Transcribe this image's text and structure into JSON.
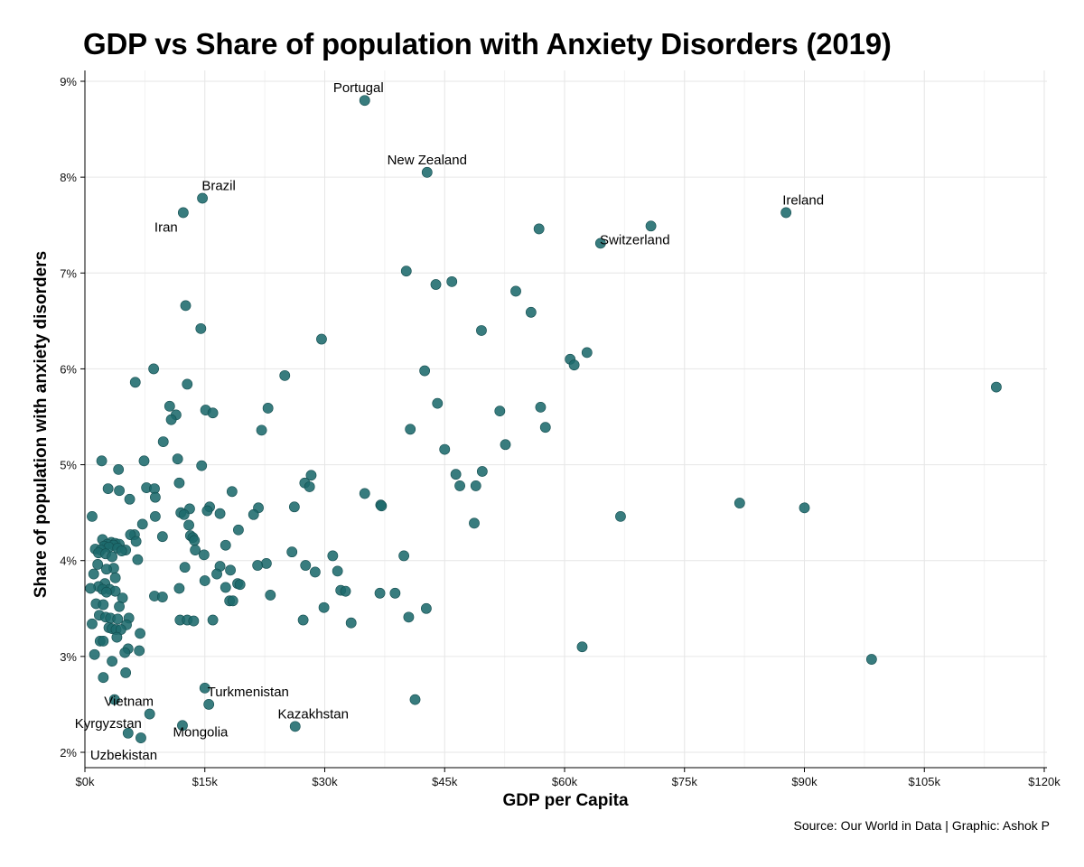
{
  "chart_data": {
    "type": "scatter",
    "title": "GDP vs Share of population with Anxiety Disorders (2019)",
    "xlabel": "GDP per Capita",
    "ylabel": "Share of population with anxiety disorders",
    "source": "Source: Our World in Data | Graphic: Ashok P",
    "xlim": [
      0,
      120000
    ],
    "ylim": [
      2,
      9
    ],
    "grid": true,
    "x_ticks": [
      {
        "value": 0,
        "label": "$0k"
      },
      {
        "value": 15000,
        "label": "$15k"
      },
      {
        "value": 30000,
        "label": "$30k"
      },
      {
        "value": 45000,
        "label": "$45k"
      },
      {
        "value": 60000,
        "label": "$60k"
      },
      {
        "value": 75000,
        "label": "$75k"
      },
      {
        "value": 90000,
        "label": "$90k"
      },
      {
        "value": 105000,
        "label": "$105k"
      },
      {
        "value": 120000,
        "label": "$120k"
      }
    ],
    "y_ticks": [
      {
        "value": 2,
        "label": "2%"
      },
      {
        "value": 3,
        "label": "3%"
      },
      {
        "value": 4,
        "label": "4%"
      },
      {
        "value": 5,
        "label": "5%"
      },
      {
        "value": 6,
        "label": "6%"
      },
      {
        "value": 7,
        "label": "7%"
      },
      {
        "value": 8,
        "label": "8%"
      },
      {
        "value": 9,
        "label": "9%"
      }
    ],
    "color": "#1c6a6c",
    "labeled_points": [
      {
        "label": "Portugal",
        "x": 35000,
        "y": 8.8
      },
      {
        "label": "New Zealand",
        "x": 42800,
        "y": 8.05
      },
      {
        "label": "Brazil",
        "x": 14700,
        "y": 7.78
      },
      {
        "label": "Iran",
        "x": 12300,
        "y": 7.63
      },
      {
        "label": "Ireland",
        "x": 87700,
        "y": 7.63
      },
      {
        "label": "Switzerland",
        "x": 64500,
        "y": 7.31
      },
      {
        "label": "Turkmenistan",
        "x": 15000,
        "y": 2.67
      },
      {
        "label": "Vietnam",
        "x": 8100,
        "y": 2.4
      },
      {
        "label": "Kyrgyzstan",
        "x": 5400,
        "y": 2.2
      },
      {
        "label": "Kazakhstan",
        "x": 26300,
        "y": 2.27
      },
      {
        "label": "Mongolia",
        "x": 12200,
        "y": 2.28
      },
      {
        "label": "Uzbekistan",
        "x": 7000,
        "y": 2.15
      }
    ],
    "points": [
      {
        "x": 70800,
        "y": 7.49
      },
      {
        "x": 56800,
        "y": 7.46
      },
      {
        "x": 40200,
        "y": 7.02
      },
      {
        "x": 45900,
        "y": 6.91
      },
      {
        "x": 43900,
        "y": 6.88
      },
      {
        "x": 53900,
        "y": 6.81
      },
      {
        "x": 12600,
        "y": 6.66
      },
      {
        "x": 55800,
        "y": 6.59
      },
      {
        "x": 14500,
        "y": 6.42
      },
      {
        "x": 49600,
        "y": 6.4
      },
      {
        "x": 29600,
        "y": 6.31
      },
      {
        "x": 62800,
        "y": 6.17
      },
      {
        "x": 60700,
        "y": 6.1
      },
      {
        "x": 61200,
        "y": 6.04
      },
      {
        "x": 8600,
        "y": 6.0
      },
      {
        "x": 42500,
        "y": 5.98
      },
      {
        "x": 25000,
        "y": 5.93
      },
      {
        "x": 6300,
        "y": 5.86
      },
      {
        "x": 12800,
        "y": 5.84
      },
      {
        "x": 114000,
        "y": 5.81
      },
      {
        "x": 44100,
        "y": 5.64
      },
      {
        "x": 10600,
        "y": 5.61
      },
      {
        "x": 57000,
        "y": 5.6
      },
      {
        "x": 22900,
        "y": 5.59
      },
      {
        "x": 15100,
        "y": 5.57
      },
      {
        "x": 16000,
        "y": 5.54
      },
      {
        "x": 51900,
        "y": 5.56
      },
      {
        "x": 11400,
        "y": 5.52
      },
      {
        "x": 10800,
        "y": 5.47
      },
      {
        "x": 57600,
        "y": 5.39
      },
      {
        "x": 40700,
        "y": 5.37
      },
      {
        "x": 22100,
        "y": 5.36
      },
      {
        "x": 9800,
        "y": 5.24
      },
      {
        "x": 52600,
        "y": 5.21
      },
      {
        "x": 45000,
        "y": 5.16
      },
      {
        "x": 11600,
        "y": 5.06
      },
      {
        "x": 2100,
        "y": 5.04
      },
      {
        "x": 7400,
        "y": 5.04
      },
      {
        "x": 14600,
        "y": 4.99
      },
      {
        "x": 4200,
        "y": 4.95
      },
      {
        "x": 49700,
        "y": 4.93
      },
      {
        "x": 46400,
        "y": 4.9
      },
      {
        "x": 28300,
        "y": 4.89
      },
      {
        "x": 27500,
        "y": 4.81
      },
      {
        "x": 11800,
        "y": 4.81
      },
      {
        "x": 46900,
        "y": 4.78
      },
      {
        "x": 48900,
        "y": 4.78
      },
      {
        "x": 28100,
        "y": 4.77
      },
      {
        "x": 2900,
        "y": 4.75
      },
      {
        "x": 7700,
        "y": 4.76
      },
      {
        "x": 8700,
        "y": 4.75
      },
      {
        "x": 4300,
        "y": 4.73
      },
      {
        "x": 18400,
        "y": 4.72
      },
      {
        "x": 35000,
        "y": 4.7
      },
      {
        "x": 8800,
        "y": 4.66
      },
      {
        "x": 5600,
        "y": 4.64
      },
      {
        "x": 81900,
        "y": 4.6
      },
      {
        "x": 37000,
        "y": 4.58
      },
      {
        "x": 37100,
        "y": 4.57
      },
      {
        "x": 15600,
        "y": 4.56
      },
      {
        "x": 26200,
        "y": 4.56
      },
      {
        "x": 90000,
        "y": 4.55
      },
      {
        "x": 21700,
        "y": 4.55
      },
      {
        "x": 13100,
        "y": 4.54
      },
      {
        "x": 15300,
        "y": 4.52
      },
      {
        "x": 12000,
        "y": 4.5
      },
      {
        "x": 16900,
        "y": 4.49
      },
      {
        "x": 21100,
        "y": 4.48
      },
      {
        "x": 12400,
        "y": 4.48
      },
      {
        "x": 8800,
        "y": 4.46
      },
      {
        "x": 67000,
        "y": 4.46
      },
      {
        "x": 900,
        "y": 4.46
      },
      {
        "x": 48700,
        "y": 4.39
      },
      {
        "x": 7200,
        "y": 4.38
      },
      {
        "x": 13000,
        "y": 4.37
      },
      {
        "x": 19200,
        "y": 4.32
      },
      {
        "x": 6200,
        "y": 4.27
      },
      {
        "x": 5700,
        "y": 4.27
      },
      {
        "x": 9700,
        "y": 4.25
      },
      {
        "x": 13200,
        "y": 4.26
      },
      {
        "x": 13500,
        "y": 4.24
      },
      {
        "x": 13700,
        "y": 4.21
      },
      {
        "x": 2200,
        "y": 4.22
      },
      {
        "x": 6400,
        "y": 4.2
      },
      {
        "x": 3300,
        "y": 4.19
      },
      {
        "x": 3800,
        "y": 4.18
      },
      {
        "x": 2800,
        "y": 4.17
      },
      {
        "x": 4300,
        "y": 4.17
      },
      {
        "x": 3600,
        "y": 4.16
      },
      {
        "x": 17600,
        "y": 4.16
      },
      {
        "x": 2400,
        "y": 4.15
      },
      {
        "x": 3000,
        "y": 4.14
      },
      {
        "x": 4100,
        "y": 4.13
      },
      {
        "x": 1300,
        "y": 4.12
      },
      {
        "x": 2000,
        "y": 4.11
      },
      {
        "x": 5100,
        "y": 4.11
      },
      {
        "x": 13800,
        "y": 4.11
      },
      {
        "x": 4600,
        "y": 4.1
      },
      {
        "x": 25900,
        "y": 4.09
      },
      {
        "x": 1700,
        "y": 4.08
      },
      {
        "x": 2600,
        "y": 4.07
      },
      {
        "x": 14900,
        "y": 4.06
      },
      {
        "x": 31000,
        "y": 4.05
      },
      {
        "x": 39900,
        "y": 4.05
      },
      {
        "x": 3400,
        "y": 4.04
      },
      {
        "x": 6600,
        "y": 4.01
      },
      {
        "x": 22700,
        "y": 3.97
      },
      {
        "x": 1600,
        "y": 3.96
      },
      {
        "x": 21600,
        "y": 3.95
      },
      {
        "x": 16900,
        "y": 3.94
      },
      {
        "x": 27600,
        "y": 3.95
      },
      {
        "x": 12500,
        "y": 3.93
      },
      {
        "x": 3600,
        "y": 3.92
      },
      {
        "x": 2700,
        "y": 3.91
      },
      {
        "x": 18200,
        "y": 3.9
      },
      {
        "x": 31600,
        "y": 3.89
      },
      {
        "x": 28800,
        "y": 3.88
      },
      {
        "x": 1100,
        "y": 3.86
      },
      {
        "x": 16500,
        "y": 3.86
      },
      {
        "x": 3800,
        "y": 3.82
      },
      {
        "x": 15000,
        "y": 3.79
      },
      {
        "x": 2500,
        "y": 3.76
      },
      {
        "x": 19100,
        "y": 3.76
      },
      {
        "x": 19400,
        "y": 3.75
      },
      {
        "x": 1700,
        "y": 3.73
      },
      {
        "x": 17600,
        "y": 3.72
      },
      {
        "x": 700,
        "y": 3.71
      },
      {
        "x": 11800,
        "y": 3.71
      },
      {
        "x": 3100,
        "y": 3.7
      },
      {
        "x": 2200,
        "y": 3.7
      },
      {
        "x": 32000,
        "y": 3.69
      },
      {
        "x": 32600,
        "y": 3.68
      },
      {
        "x": 3800,
        "y": 3.68
      },
      {
        "x": 2700,
        "y": 3.67
      },
      {
        "x": 36900,
        "y": 3.66
      },
      {
        "x": 38800,
        "y": 3.66
      },
      {
        "x": 23200,
        "y": 3.64
      },
      {
        "x": 8700,
        "y": 3.63
      },
      {
        "x": 9700,
        "y": 3.62
      },
      {
        "x": 4700,
        "y": 3.61
      },
      {
        "x": 18100,
        "y": 3.58
      },
      {
        "x": 18500,
        "y": 3.58
      },
      {
        "x": 1400,
        "y": 3.55
      },
      {
        "x": 2300,
        "y": 3.54
      },
      {
        "x": 4300,
        "y": 3.52
      },
      {
        "x": 29900,
        "y": 3.51
      },
      {
        "x": 42700,
        "y": 3.5
      },
      {
        "x": 1800,
        "y": 3.43
      },
      {
        "x": 2600,
        "y": 3.41
      },
      {
        "x": 40500,
        "y": 3.41
      },
      {
        "x": 3200,
        "y": 3.4
      },
      {
        "x": 5500,
        "y": 3.4
      },
      {
        "x": 4100,
        "y": 3.39
      },
      {
        "x": 11900,
        "y": 3.38
      },
      {
        "x": 12800,
        "y": 3.38
      },
      {
        "x": 13600,
        "y": 3.37
      },
      {
        "x": 16000,
        "y": 3.38
      },
      {
        "x": 27300,
        "y": 3.38
      },
      {
        "x": 33300,
        "y": 3.35
      },
      {
        "x": 900,
        "y": 3.34
      },
      {
        "x": 5200,
        "y": 3.33
      },
      {
        "x": 3000,
        "y": 3.3
      },
      {
        "x": 3400,
        "y": 3.29
      },
      {
        "x": 3900,
        "y": 3.28
      },
      {
        "x": 4500,
        "y": 3.28
      },
      {
        "x": 6900,
        "y": 3.24
      },
      {
        "x": 4000,
        "y": 3.2
      },
      {
        "x": 1900,
        "y": 3.16
      },
      {
        "x": 2300,
        "y": 3.16
      },
      {
        "x": 62200,
        "y": 3.1
      },
      {
        "x": 5400,
        "y": 3.08
      },
      {
        "x": 6800,
        "y": 3.06
      },
      {
        "x": 5000,
        "y": 3.04
      },
      {
        "x": 1200,
        "y": 3.02
      },
      {
        "x": 98400,
        "y": 2.97
      },
      {
        "x": 3400,
        "y": 2.95
      },
      {
        "x": 5100,
        "y": 2.83
      },
      {
        "x": 2300,
        "y": 2.78
      },
      {
        "x": 3700,
        "y": 2.55
      },
      {
        "x": 41300,
        "y": 2.55
      },
      {
        "x": 15500,
        "y": 2.5
      }
    ]
  }
}
